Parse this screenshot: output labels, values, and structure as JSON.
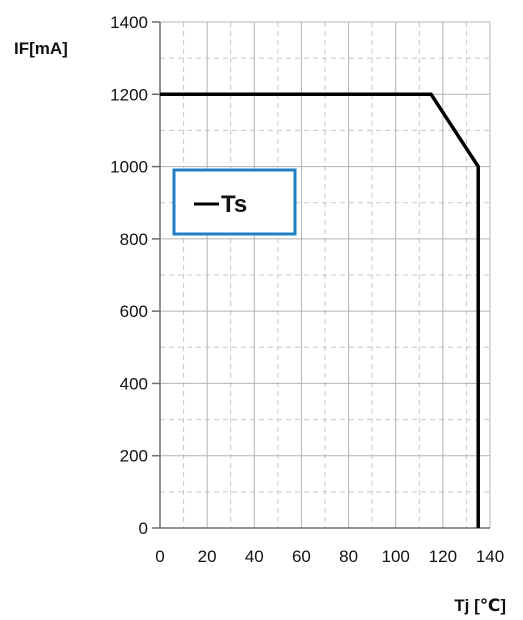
{
  "chart_data": {
    "type": "line",
    "xlabel": "Tj [℃]",
    "ylabel": "IF[mA]",
    "xlim": [
      0,
      140
    ],
    "ylim": [
      0,
      1400
    ],
    "x_ticks": [
      0,
      20,
      40,
      60,
      80,
      100,
      120,
      140
    ],
    "y_ticks": [
      0,
      200,
      400,
      600,
      800,
      1000,
      1200,
      1400
    ],
    "grid": {
      "major": true,
      "minor": true,
      "x_minor_step": 10,
      "y_minor_step": 100
    },
    "legend_position": "upper-left",
    "series": [
      {
        "name": "Ts",
        "color": "#000000",
        "x": [
          0,
          115,
          135,
          135
        ],
        "y": [
          1200,
          1200,
          1000,
          0
        ]
      }
    ],
    "colors": {
      "grid_major": "#b3b3b3",
      "grid_minor": "#c8c8c8",
      "axis": "#6e6e6e",
      "legend_border": "#1f7fc4",
      "series": "#000000"
    }
  }
}
